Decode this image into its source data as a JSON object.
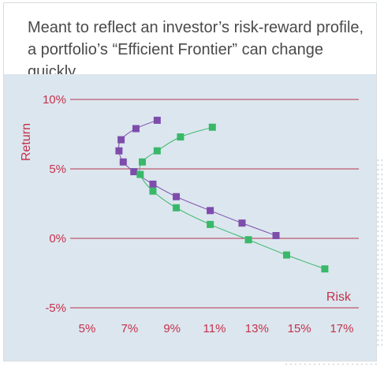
{
  "header": {
    "title": "Meant to reflect an investor’s risk-reward profile, a portfolio’s “Efficient Frontier” can change quickly"
  },
  "colors": {
    "background": "#dce6ef",
    "axis": "#c4314b",
    "gridline": "#b7324f",
    "series_purple": "#7e4dab",
    "series_green": "#3ab86a"
  },
  "chart_data": {
    "type": "scatter",
    "title": "",
    "xlabel": "Risk",
    "ylabel": "Return",
    "xlim": [
      4.2,
      17.8
    ],
    "ylim": [
      -5,
      10
    ],
    "x_ticks": [
      5,
      7,
      9,
      11,
      13,
      15,
      17
    ],
    "x_tick_labels": [
      "5%",
      "7%",
      "9%",
      "11%",
      "13%",
      "15%",
      "17%"
    ],
    "y_ticks": [
      10,
      5,
      0,
      -5
    ],
    "y_tick_labels": [
      "10%",
      "5%",
      "0%",
      "-5%"
    ],
    "grid": "horizontal",
    "legend": "none",
    "series": [
      {
        "color": "purple",
        "x": [
          8.3,
          7.3,
          6.6,
          6.5,
          6.7,
          7.2,
          8.1,
          9.2,
          10.8,
          12.3,
          13.9
        ],
        "y": [
          8.5,
          7.9,
          7.1,
          6.3,
          5.5,
          4.8,
          3.9,
          3.0,
          2.0,
          1.1,
          0.2
        ]
      },
      {
        "color": "green",
        "x": [
          10.9,
          9.4,
          8.3,
          7.6,
          7.5,
          8.1,
          9.2,
          10.8,
          12.6,
          14.4,
          16.2
        ],
        "y": [
          8.0,
          7.3,
          6.3,
          5.5,
          4.6,
          3.4,
          2.2,
          1.0,
          -0.1,
          -1.2,
          -2.2
        ]
      }
    ]
  }
}
